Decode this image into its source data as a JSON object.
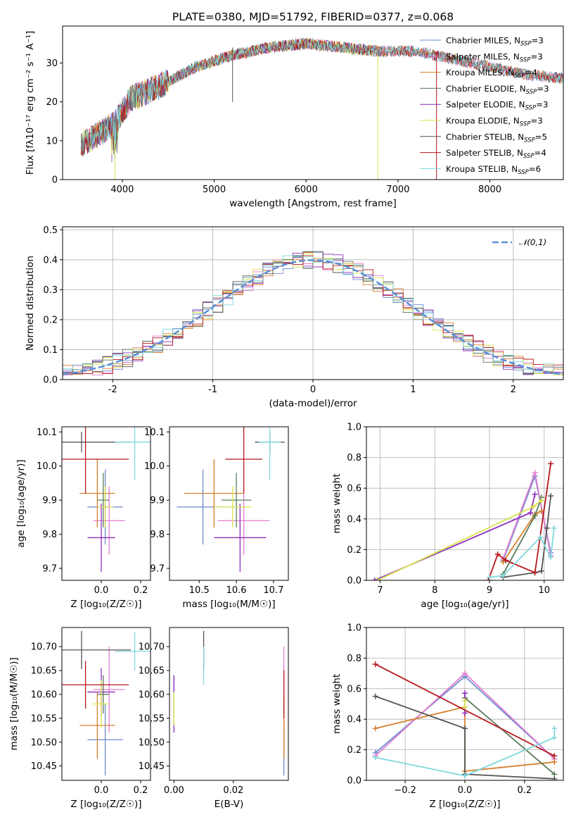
{
  "figure": {
    "title": "PLATE=0380, MJD=51792, FIBERID=0377, z=0.068"
  },
  "chart_data": [
    {
      "id": "spectrum",
      "type": "line",
      "xlabel": "wavelength [Angstrom, rest frame]",
      "ylabel": "Flux [fλ10⁻¹⁷ erg cm⁻² s⁻¹ A⁻¹]",
      "xlim": [
        3350,
        8800
      ],
      "ylim": [
        0,
        39.5
      ],
      "xticks": [
        4000,
        5000,
        6000,
        7000,
        8000
      ],
      "yticks": [
        0,
        10,
        20,
        30
      ],
      "grid": false,
      "legend_loc": "right",
      "series": [
        {
          "name": "Chabrier MILES, N_SSP=3",
          "color": "#6b8ccf",
          "x": [
            3550,
            3900,
            4100,
            4400,
            4800,
            5200,
            5600,
            6000,
            6400,
            6800,
            7200,
            7600,
            8000,
            8400,
            8800
          ],
          "y": [
            9,
            14,
            21,
            24,
            29,
            32,
            34,
            35,
            34,
            33,
            33,
            31,
            29,
            27,
            26
          ]
        },
        {
          "name": "Salpeter MILES, N_SSP=3",
          "color": "#e37dd0",
          "x": [
            3550,
            3900,
            4100,
            4400,
            4800,
            5200,
            5600,
            6000,
            6400,
            6800,
            7200,
            7600,
            8000,
            8400,
            8800
          ],
          "y": [
            9,
            14,
            21,
            24,
            29,
            32,
            34,
            35,
            34,
            33,
            33,
            31,
            29,
            27,
            26
          ]
        },
        {
          "name": "Kroupa MILES, N_SSP=4",
          "color": "#d67f29",
          "x": [
            3550,
            3900,
            4100,
            4400,
            4800,
            5200,
            5600,
            6000,
            6400,
            6800,
            7200,
            7600,
            8000,
            8400,
            8800
          ],
          "y": [
            9,
            14,
            21,
            24,
            29,
            32,
            34,
            35,
            34,
            33,
            33,
            31,
            29,
            27,
            26
          ]
        },
        {
          "name": "Chabrier ELODIE, N_SSP=3",
          "color": "#5a7a5a",
          "x": [
            3550,
            3900,
            4100,
            4400,
            4800,
            5200,
            5600,
            6000,
            6400,
            6800
          ],
          "y": [
            9,
            14,
            21,
            24,
            29,
            32,
            34,
            35,
            34,
            33
          ]
        },
        {
          "name": "Salpeter ELODIE, N_SSP=3",
          "color": "#8e2fbf",
          "x": [
            3550,
            3900,
            4100,
            4400,
            4800,
            5200,
            5600,
            6000,
            6400,
            6800
          ],
          "y": [
            9,
            14,
            21,
            24,
            29,
            32,
            34,
            35,
            34,
            33
          ]
        },
        {
          "name": "Kroupa ELODIE, N_SSP=3",
          "color": "#d9e34a",
          "x": [
            3550,
            3900,
            4100,
            4400,
            4800,
            5200,
            5600,
            6000,
            6400,
            6800
          ],
          "y": [
            9,
            14,
            21,
            24,
            29,
            32,
            34,
            35,
            34,
            33
          ]
        },
        {
          "name": "Chabrier STELIB, N_SSP=5",
          "color": "#555555",
          "x": [
            3550,
            3900,
            4100,
            4400,
            4800,
            5200,
            5600,
            6000,
            6400,
            6800,
            7200,
            7600,
            8000,
            8400,
            8800
          ],
          "y": [
            9,
            14,
            21,
            24,
            29,
            32,
            34,
            35,
            34,
            33,
            33,
            31,
            29,
            27,
            26
          ]
        },
        {
          "name": "Salpeter STELIB, N_SSP=4",
          "color": "#b8181c",
          "x": [
            3550,
            3900,
            4100,
            4400,
            4800,
            5200,
            5600,
            6000,
            6400,
            6800,
            7200,
            7600,
            8000,
            8400,
            8800
          ],
          "y": [
            9,
            14,
            21,
            24,
            29,
            32,
            34,
            35,
            34,
            33,
            33,
            31,
            29,
            27,
            26
          ]
        },
        {
          "name": "Kroupa STELIB, N_SSP=6",
          "color": "#7fd8dc",
          "x": [
            3550,
            3900,
            4100,
            4400,
            4800,
            5200,
            5600,
            6000,
            6400,
            6800,
            7200,
            7600,
            8000,
            8400,
            8800
          ],
          "y": [
            9,
            14,
            21,
            24,
            29,
            32,
            34,
            35,
            34,
            33,
            33,
            31,
            29,
            27,
            26
          ]
        }
      ]
    },
    {
      "id": "residuals",
      "type": "line",
      "xlabel": "(data-model)/error",
      "ylabel": "Normed distribution",
      "xlim": [
        -2.5,
        2.5
      ],
      "ylim": [
        0,
        0.51
      ],
      "xticks": [
        -2,
        -1,
        0,
        1,
        2
      ],
      "yticks": [
        0.0,
        0.1,
        0.2,
        0.3,
        0.4,
        0.5
      ],
      "grid": true,
      "legend_loc": "upper right",
      "reference": {
        "name": "𝒩(0,1)",
        "color": "#5b8fd8",
        "style": "dashed"
      }
    },
    {
      "id": "age_vs_Z",
      "type": "scatter",
      "xlabel": "Z [log₁₀(Z/Z☉)]",
      "ylabel": "age  [log₁₀(age/yr)]",
      "xlim": [
        -0.2,
        0.25
      ],
      "ylim": [
        9.665,
        10.115
      ],
      "xticks": [
        0.0,
        0.2
      ],
      "xticklabels": [
        "0.0",
        "0.2"
      ],
      "yticks": [
        9.7,
        9.8,
        9.9,
        10.0,
        10.1
      ],
      "points": [
        {
          "color": "#6b8ccf",
          "x": 0.02,
          "xerr": 0.09,
          "y": 9.88,
          "yerr": 0.11
        },
        {
          "color": "#e37dd0",
          "x": 0.04,
          "xerr": 0.08,
          "y": 9.84,
          "yerr": 0.1
        },
        {
          "color": "#d67f29",
          "x": -0.02,
          "xerr": 0.09,
          "y": 9.92,
          "yerr": 0.1
        },
        {
          "color": "#5a7a5a",
          "x": 0.01,
          "xerr": 0.03,
          "y": 9.9,
          "yerr": 0.08
        },
        {
          "color": "#8e2fbf",
          "x": 0.0,
          "xerr": 0.07,
          "y": 9.79,
          "yerr": 0.1
        },
        {
          "color": "#d9e34a",
          "x": 0.02,
          "xerr": 0.04,
          "y": 9.88,
          "yerr": 0.06
        },
        {
          "color": "#555555",
          "x": -0.1,
          "xerr": 0.25,
          "y": 10.07,
          "yerr": 0.03
        },
        {
          "color": "#b8181c",
          "x": -0.08,
          "xerr": 0.22,
          "y": 10.02,
          "yerr": 0.1
        },
        {
          "color": "#7fd8dc",
          "x": 0.17,
          "xerr": 0.1,
          "y": 10.07,
          "yerr": 0.11
        }
      ]
    },
    {
      "id": "age_vs_mass",
      "type": "scatter",
      "xlabel": "mass [log₁₀(M/M☉)]",
      "ylabel": "",
      "xlim": [
        10.42,
        10.74
      ],
      "ylim": [
        9.665,
        10.115
      ],
      "xticks": [
        10.5,
        10.6,
        10.7
      ],
      "xticklabels": [
        "10.5",
        "10.6",
        "10.7"
      ],
      "yticks": [
        9.7,
        9.8,
        9.9,
        10.0,
        10.1
      ],
      "points": [
        {
          "color": "#6b8ccf",
          "x": 10.51,
          "xerr": 0.07,
          "y": 9.88,
          "yerr": 0.11
        },
        {
          "color": "#e37dd0",
          "x": 10.62,
          "xerr": 0.07,
          "y": 9.84,
          "yerr": 0.1
        },
        {
          "color": "#d67f29",
          "x": 10.54,
          "xerr": 0.08,
          "y": 9.92,
          "yerr": 0.1
        },
        {
          "color": "#5a7a5a",
          "x": 10.6,
          "xerr": 0.04,
          "y": 9.9,
          "yerr": 0.08
        },
        {
          "color": "#8e2fbf",
          "x": 10.61,
          "xerr": 0.07,
          "y": 9.79,
          "yerr": 0.1
        },
        {
          "color": "#d9e34a",
          "x": 10.59,
          "xerr": 0.05,
          "y": 9.88,
          "yerr": 0.06
        },
        {
          "color": "#555555",
          "x": 10.69,
          "xerr": 0.04,
          "y": 10.07,
          "yerr": 0.03
        },
        {
          "color": "#b8181c",
          "x": 10.62,
          "xerr": 0.05,
          "y": 10.02,
          "yerr": 0.1
        },
        {
          "color": "#7fd8dc",
          "x": 10.69,
          "xerr": 0.03,
          "y": 10.07,
          "yerr": 0.11
        }
      ]
    },
    {
      "id": "weight_vs_age",
      "type": "line",
      "xlabel": "age  [log₁₀(age/yr)]",
      "ylabel": "mass weight",
      "xlim": [
        6.75,
        10.35
      ],
      "ylim": [
        0,
        1.0
      ],
      "xticks": [
        7,
        8,
        9,
        10
      ],
      "yticks": [
        0.0,
        0.2,
        0.4,
        0.6,
        0.8,
        1.0
      ],
      "grid": true,
      "series": [
        {
          "color": "#6b8ccf",
          "x": [
            9.25,
            9.83,
            10.12
          ],
          "y": [
            0.13,
            0.68,
            0.18
          ]
        },
        {
          "color": "#e37dd0",
          "x": [
            9.25,
            9.83,
            10.12
          ],
          "y": [
            0.14,
            0.7,
            0.16
          ]
        },
        {
          "color": "#d67f29",
          "x": [
            9.25,
            9.83,
            9.95
          ],
          "y": [
            0.12,
            0.43,
            0.45
          ]
        },
        {
          "color": "#5a7a5a",
          "x": [
            9.25,
            9.83,
            9.95
          ],
          "y": [
            0.04,
            0.42,
            0.54
          ]
        },
        {
          "color": "#8e2fbf",
          "x": [
            6.9,
            9.75,
            9.83
          ],
          "y": [
            0.0,
            0.44,
            0.56
          ]
        },
        {
          "color": "#d9e34a",
          "x": [
            6.95,
            9.8,
            9.95
          ],
          "y": [
            0.0,
            0.48,
            0.52
          ]
        },
        {
          "color": "#555555",
          "x": [
            9.25,
            9.83,
            9.95,
            10.05,
            10.12
          ],
          "y": [
            0.02,
            0.05,
            0.06,
            0.34,
            0.55
          ]
        },
        {
          "color": "#b8181c",
          "x": [
            8.98,
            9.15,
            9.3,
            9.83,
            10.12
          ],
          "y": [
            0.0,
            0.17,
            0.13,
            0.05,
            0.76
          ]
        },
        {
          "color": "#7fd8dc",
          "x": [
            9.0,
            9.25,
            9.93,
            10.12,
            10.18
          ],
          "y": [
            0.02,
            0.03,
            0.28,
            0.15,
            0.34
          ]
        }
      ]
    },
    {
      "id": "mass_vs_Z",
      "type": "scatter",
      "xlabel": "Z [log₁₀(Z/Z☉)]",
      "ylabel": "mass [log₁₀(M/M☉)]",
      "xlim": [
        -0.2,
        0.25
      ],
      "ylim": [
        10.42,
        10.74
      ],
      "xticks": [
        0.0,
        0.2
      ],
      "xticklabels": [
        "0.0",
        "0.2"
      ],
      "yticks": [
        10.45,
        10.5,
        10.55,
        10.6,
        10.65,
        10.7
      ],
      "points": [
        {
          "color": "#6b8ccf",
          "x": 0.02,
          "xerr": 0.09,
          "y": 10.505,
          "yerr": 0.075
        },
        {
          "color": "#e37dd0",
          "x": 0.04,
          "xerr": 0.08,
          "y": 10.61,
          "yerr": 0.09
        },
        {
          "color": "#d67f29",
          "x": -0.02,
          "xerr": 0.09,
          "y": 10.535,
          "yerr": 0.07
        },
        {
          "color": "#5a7a5a",
          "x": 0.01,
          "xerr": 0.03,
          "y": 10.6,
          "yerr": 0.04
        },
        {
          "color": "#8e2fbf",
          "x": 0.0,
          "xerr": 0.07,
          "y": 10.605,
          "yerr": 0.05
        },
        {
          "color": "#d9e34a",
          "x": 0.0,
          "xerr": 0.04,
          "y": 10.58,
          "yerr": 0.05
        },
        {
          "color": "#555555",
          "x": -0.1,
          "xerr": 0.25,
          "y": 10.693,
          "yerr": 0.04
        },
        {
          "color": "#b8181c",
          "x": -0.08,
          "xerr": 0.22,
          "y": 10.62,
          "yerr": 0.05
        },
        {
          "color": "#7fd8dc",
          "x": 0.17,
          "xerr": 0.1,
          "y": 10.69,
          "yerr": 0.04
        }
      ]
    },
    {
      "id": "mass_vs_EBV",
      "type": "scatter",
      "xlabel": "E(B-V)",
      "ylabel": "",
      "xlim": [
        -0.0015,
        0.0385
      ],
      "ylim": [
        10.42,
        10.74
      ],
      "xticks": [
        0.0,
        0.02
      ],
      "xticklabels": [
        "0.00",
        "0.02"
      ],
      "yticks": [
        10.45,
        10.5,
        10.55,
        10.6,
        10.65,
        10.7
      ],
      "points": [
        {
          "color": "#6b8ccf",
          "x": 0.037,
          "xerr": 0,
          "y": 10.505,
          "yerr": 0.075
        },
        {
          "color": "#e37dd0",
          "x": 0.037,
          "xerr": 0,
          "y": 10.61,
          "yerr": 0.09
        },
        {
          "color": "#d67f29",
          "x": 0.037,
          "xerr": 0,
          "y": 10.535,
          "yerr": 0.07
        },
        {
          "color": "#5a7a5a",
          "x": 0.0,
          "xerr": 0,
          "y": 10.6,
          "yerr": 0.04
        },
        {
          "color": "#8e2fbf",
          "x": 0.0,
          "xerr": 0,
          "y": 10.58,
          "yerr": 0.06
        },
        {
          "color": "#d9e34a",
          "x": 0.0,
          "xerr": 0,
          "y": 10.57,
          "yerr": 0.035
        },
        {
          "color": "#555555",
          "x": 0.01,
          "xerr": 0,
          "y": 10.693,
          "yerr": 0.04
        },
        {
          "color": "#b8181c",
          "x": 0.037,
          "xerr": 0,
          "y": 10.6,
          "yerr": 0.05
        },
        {
          "color": "#7fd8dc",
          "x": 0.01,
          "xerr": 0,
          "y": 10.66,
          "yerr": 0.04
        }
      ]
    },
    {
      "id": "weight_vs_Z",
      "type": "line",
      "xlabel": "Z [log₁₀(Z/Z☉)]",
      "ylabel": "mass weight",
      "xlim": [
        -0.33,
        0.33
      ],
      "ylim": [
        0,
        1.0
      ],
      "xticks": [
        -0.2,
        0.0,
        0.2
      ],
      "xticklabels": [
        "−0.2",
        "0.0",
        "0.2"
      ],
      "yticks": [
        0.0,
        0.2,
        0.4,
        0.6,
        0.8,
        1.0
      ],
      "grid": true,
      "series": [
        {
          "color": "#6b8ccf",
          "x": [
            -0.3,
            0.0,
            0.3
          ],
          "y": [
            0.18,
            0.68,
            0.14
          ]
        },
        {
          "color": "#e37dd0",
          "x": [
            -0.3,
            0.0,
            0.3
          ],
          "y": [
            0.16,
            0.7,
            0.14
          ]
        },
        {
          "color": "#d67f29",
          "x": [
            -0.3,
            0.0,
            0.0,
            0.3
          ],
          "y": [
            0.34,
            0.48,
            0.06,
            0.12
          ]
        },
        {
          "color": "#5a7a5a",
          "x": [
            0.0,
            0.3
          ],
          "y": [
            0.54,
            0.04
          ]
        },
        {
          "color": "#8e2fbf",
          "x": [
            0.0,
            0.0
          ],
          "y": [
            0.44,
            0.57
          ]
        },
        {
          "color": "#d9e34a",
          "x": [
            0.0,
            0.0
          ],
          "y": [
            0.48,
            0.52
          ]
        },
        {
          "color": "#555555",
          "x": [
            -0.3,
            0.0,
            0.0,
            0.3
          ],
          "y": [
            0.55,
            0.34,
            0.04,
            0.01
          ]
        },
        {
          "color": "#b8181c",
          "x": [
            -0.3,
            0.3
          ],
          "y": [
            0.76,
            0.16
          ]
        },
        {
          "color": "#7fd8dc",
          "x": [
            -0.3,
            0.0,
            0.3,
            0.3
          ],
          "y": [
            0.15,
            0.03,
            0.28,
            0.34
          ]
        }
      ]
    }
  ]
}
